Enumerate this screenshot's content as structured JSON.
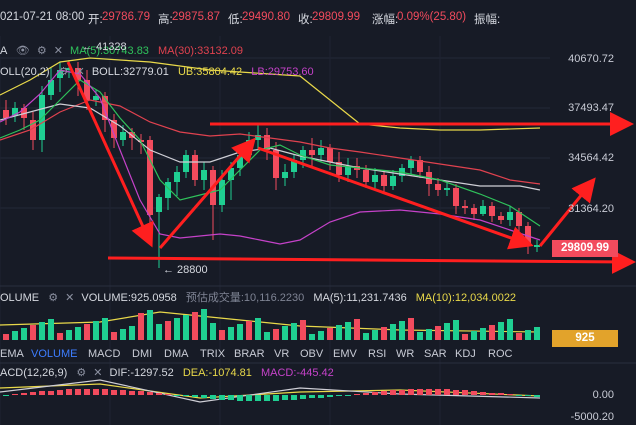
{
  "header": {
    "date": "021-07-21 08:00",
    "open_label": "开:",
    "open": "29786.79",
    "high_label": "高:",
    "high": "29875.87",
    "low_label": "低:",
    "low": "29490.80",
    "close_label": "收:",
    "close": "29809.99",
    "change_label": "涨幅:",
    "change": "0.09%(25.80)",
    "amplitude_label": "振幅:"
  },
  "ma_legend": {
    "prefix": "A",
    "ma_text": "MA(5):30743.83",
    "ma30_text": "MA(30):33132.09"
  },
  "boll_legend": {
    "name": "OLL(20,2)",
    "boll": "BOLL:32779.01",
    "ub": "UB:35804.42",
    "lb": "LB:29753.60"
  },
  "annotations": {
    "high_marker": "← 41328",
    "low_marker": "← 28800"
  },
  "price_axis": [
    "40670.72",
    "37493.47",
    "34564.42",
    "31364.20"
  ],
  "current_price": "29809.99",
  "volume_legend": {
    "name": "OLUME",
    "volume": "VOLUME:925.0958",
    "forecast": "预估成交量:10,116.2230",
    "ma5": "MA(5):11,231.7436",
    "ma10": "MA(10):12,034.0022"
  },
  "current_volume": "925",
  "indicator_tabs": [
    "EMA",
    "VOLUME",
    "MACD",
    "DMI",
    "DMA",
    "TRIX",
    "BRAR",
    "VR",
    "OBV",
    "EMV",
    "RSI",
    "WR",
    "SAR",
    "KDJ",
    "ROC"
  ],
  "active_tab": "VOLUME",
  "macd_legend": {
    "name": "ACD(12,26,9)",
    "dif": "DIF:-1297.52",
    "dea": "DEA:-1074.81",
    "macd": "MACD:-445.42"
  },
  "macd_axis": [
    "0.00",
    "-5000.20"
  ],
  "colors": {
    "up": "#1fcf92",
    "down": "#f24b5d",
    "background": "#171b26",
    "ma_yellow": "#e9d94a",
    "ma_green": "#2fc25b",
    "boll_white": "#cfcfd6",
    "ub_red": "#e0424f",
    "lb_purple": "#c542c9",
    "accent_blue": "#3d7dff",
    "arrow_red": "#ff1f1f"
  }
}
